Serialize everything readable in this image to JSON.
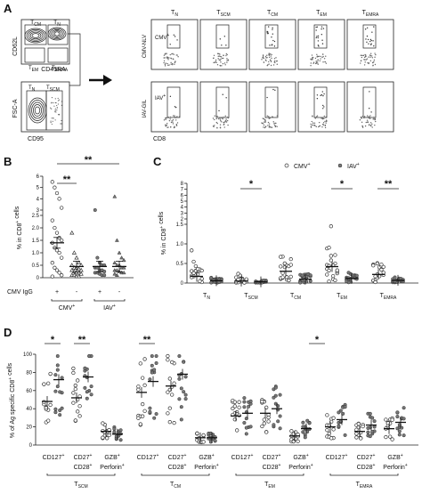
{
  "panels": {
    "A": {
      "letter": "A",
      "gating_top": {
        "xlabel": "CD45RA",
        "ylabel": "CD62L",
        "gates": [
          "T_CM",
          "T_N",
          "T_EM",
          "T_EMRA"
        ]
      },
      "gating_bottom": {
        "xlabel": "CD95",
        "ylabel": "FSC-A",
        "gates": [
          "T_N",
          "T_SCM"
        ]
      },
      "subsets": [
        "T_N",
        "T_SCM",
        "T_CM",
        "T_EM",
        "T_EMRA"
      ],
      "row_labels": [
        "CMV-NLV",
        "IAV-GIL"
      ],
      "row_tags": [
        "CMV+",
        "IAV+"
      ],
      "xlabel": "CD8"
    },
    "B": {
      "letter": "B",
      "ylabel": "% in CD8+ cells",
      "ylim": [
        0,
        6
      ],
      "yticks": [
        "0",
        "0.5",
        "1.0",
        "1.5",
        "2.0",
        "2.5",
        "3",
        "4",
        "5",
        "6"
      ],
      "row_label": "CMV IgG",
      "signs": [
        "+",
        "-",
        "+",
        "-"
      ],
      "groups": [
        "CMV+",
        "IAV+"
      ],
      "sig": [
        "**",
        "**"
      ]
    },
    "C": {
      "letter": "C",
      "ylabel": "% in CD8+ cells",
      "yticks": [
        "0",
        "0.5",
        "1.0",
        "1.5",
        "2",
        "3",
        "4",
        "5",
        "6",
        "7",
        "8"
      ],
      "legend": [
        "CMV+",
        "IAV+"
      ],
      "categories": [
        "T_N",
        "T_SCM",
        "T_CM",
        "T_EM",
        "T_EMRA"
      ],
      "sig": [
        "*",
        "*",
        "**"
      ]
    },
    "D": {
      "letter": "D",
      "ylabel": "% of Ag specific CD8+ cells",
      "ylim": [
        0,
        100
      ],
      "yticks": [
        "0",
        "20",
        "40",
        "60",
        "80",
        "100"
      ],
      "marker_labels": [
        "CD127+",
        "CD27+ CD28+",
        "GZB+ Perforin+"
      ],
      "groups": [
        "T_SCM",
        "T_CM",
        "T_EM",
        "T_EMRA"
      ],
      "sig": [
        "*",
        "**",
        "**",
        "*"
      ]
    }
  },
  "chart_data": [
    {
      "type": "scatter",
      "panel": "B",
      "categories": [
        "CMV+ (CMV IgG +)",
        "CMV+ (CMV IgG -)",
        "IAV+ (CMV IgG +)",
        "IAV+ (CMV IgG -)"
      ],
      "means": [
        1.4,
        0.45,
        0.45,
        0.45
      ],
      "ylim": [
        0,
        6
      ]
    },
    {
      "type": "scatter",
      "panel": "C",
      "categories": [
        "T_N",
        "T_SCM",
        "T_CM",
        "T_EM",
        "T_EMRA"
      ],
      "series": [
        {
          "name": "CMV+",
          "means": [
            0.17,
            0.05,
            0.3,
            0.42,
            0.22
          ]
        },
        {
          "name": "IAV+",
          "means": [
            0.06,
            0.03,
            0.1,
            0.12,
            0.07
          ]
        }
      ]
    },
    {
      "type": "scatter",
      "panel": "D",
      "groups": [
        "T_SCM",
        "T_CM",
        "T_EM",
        "T_EMRA"
      ],
      "markers": [
        "CD127+",
        "CD27+ CD28+",
        "GZB+ Perforin+"
      ],
      "series": [
        {
          "name": "CMV+",
          "means": [
            48,
            52,
            15,
            58,
            65,
            8,
            32,
            35,
            10,
            20,
            15,
            18
          ]
        },
        {
          "name": "IAV+",
          "means": [
            72,
            75,
            12,
            70,
            78,
            8,
            35,
            40,
            18,
            28,
            22,
            25
          ]
        }
      ],
      "ylim": [
        0,
        100
      ]
    }
  ]
}
